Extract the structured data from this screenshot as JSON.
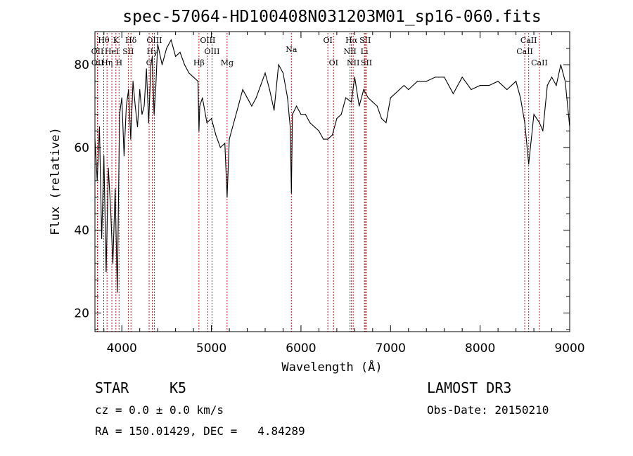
{
  "chart_data": {
    "type": "line",
    "title": "spec-57064-HD100408N031203M01_sp16-060.fits",
    "xlabel": "Wavelength (Å)",
    "ylabel": "Flux (relative)",
    "xlim": [
      3700,
      9000
    ],
    "ylim": [
      15.5,
      88
    ],
    "x_ticks": [
      4000,
      5000,
      6000,
      7000,
      8000,
      9000
    ],
    "y_ticks": [
      20,
      40,
      60,
      80
    ],
    "grid": false,
    "series": [
      {
        "color": "#000000",
        "x": [
          3700,
          3725,
          3750,
          3775,
          3800,
          3825,
          3850,
          3875,
          3900,
          3925,
          3950,
          3975,
          4000,
          4025,
          4050,
          4075,
          4100,
          4125,
          4150,
          4175,
          4200,
          4225,
          4250,
          4275,
          4300,
          4325,
          4340,
          4360,
          4380,
          4400,
          4450,
          4500,
          4550,
          4600,
          4650,
          4700,
          4750,
          4800,
          4850,
          4861,
          4870,
          4900,
          4950,
          5000,
          5050,
          5100,
          5150,
          5175,
          5200,
          5250,
          5300,
          5350,
          5400,
          5450,
          5500,
          5550,
          5600,
          5650,
          5700,
          5750,
          5800,
          5850,
          5880,
          5893,
          5905,
          5950,
          6000,
          6050,
          6100,
          6150,
          6200,
          6250,
          6300,
          6350,
          6400,
          6450,
          6500,
          6563,
          6600,
          6650,
          6700,
          6750,
          6800,
          6850,
          6900,
          6950,
          7000,
          7050,
          7100,
          7150,
          7200,
          7300,
          7400,
          7500,
          7600,
          7700,
          7800,
          7900,
          8000,
          8100,
          8200,
          8300,
          8400,
          8450,
          8498,
          8542,
          8600,
          8662,
          8700,
          8750,
          8800,
          8850,
          8900,
          8950,
          9000
        ],
        "y": [
          62,
          52,
          65,
          38,
          58,
          30,
          55,
          45,
          32,
          50,
          25,
          68,
          72,
          58,
          70,
          74,
          62,
          76,
          70,
          65,
          74,
          68,
          70,
          79,
          66,
          80,
          82,
          68,
          75,
          85,
          80,
          84,
          86,
          82,
          83,
          80,
          78,
          77,
          76,
          64,
          70,
          72,
          66,
          67,
          63,
          60,
          61,
          48,
          62,
          66,
          70,
          74,
          72,
          70,
          72,
          75,
          78,
          74,
          69,
          80,
          78,
          72,
          65,
          49,
          68,
          70,
          68,
          68,
          66,
          65,
          64,
          62,
          62,
          63,
          67,
          68,
          72,
          71,
          77,
          70,
          74,
          72,
          71,
          70,
          67,
          66,
          72,
          73,
          74,
          75,
          74,
          76,
          76,
          77,
          77,
          73,
          77,
          74,
          75,
          75,
          76,
          74,
          76,
          72,
          66,
          56,
          68,
          66,
          64,
          75,
          77,
          75,
          80,
          76,
          65
        ]
      }
    ],
    "line_markers": [
      {
        "label": "Hθ",
        "wavelength": 3798,
        "row": 1
      },
      {
        "label": "K",
        "wavelength": 3934,
        "row": 1
      },
      {
        "label": "Hδ",
        "wavelength": 4102,
        "row": 1
      },
      {
        "label": "OIII",
        "wavelength": 4363,
        "row": 1
      },
      {
        "label": "OIII",
        "wavelength": 4959,
        "row": 1
      },
      {
        "label": "OI",
        "wavelength": 6300,
        "row": 1
      },
      {
        "label": "Hα",
        "wavelength": 6563,
        "row": 1
      },
      {
        "label": "SII",
        "wavelength": 6717,
        "row": 1
      },
      {
        "label": "CaII",
        "wavelength": 8542,
        "row": 1
      },
      {
        "label": "OII",
        "wavelength": 3727,
        "row": 2
      },
      {
        "label": "HeI",
        "wavelength": 3889,
        "row": 2
      },
      {
        "label": "SII",
        "wavelength": 4072,
        "row": 2
      },
      {
        "label": "Hγ",
        "wavelength": 4340,
        "row": 2
      },
      {
        "label": "OIII",
        "wavelength": 5007,
        "row": 2
      },
      {
        "label": "NII",
        "wavelength": 6548,
        "row": 2
      },
      {
        "label": "Li",
        "wavelength": 6708,
        "row": 2
      },
      {
        "label": "CaII",
        "wavelength": 8498,
        "row": 2
      },
      {
        "label": "OII",
        "wavelength": 3729,
        "row": 3
      },
      {
        "label": "Hη",
        "wavelength": 3835,
        "row": 3
      },
      {
        "label": "H",
        "wavelength": 3969,
        "row": 3
      },
      {
        "label": "G",
        "wavelength": 4305,
        "row": 3
      },
      {
        "label": "Hβ",
        "wavelength": 4861,
        "row": 3
      },
      {
        "label": "Mg",
        "wavelength": 5175,
        "row": 3
      },
      {
        "label": "Na",
        "wavelength": 5893,
        "row": 1.8
      },
      {
        "label": "OI",
        "wavelength": 6364,
        "row": 3
      },
      {
        "label": "NII",
        "wavelength": 6583,
        "row": 3
      },
      {
        "label": "SII",
        "wavelength": 6731,
        "row": 3
      },
      {
        "label": "CaII",
        "wavelength": 8662,
        "row": 3
      }
    ]
  },
  "info": {
    "class_label": "STAR",
    "subclass": "K5",
    "cz": "cz = 0.0 ± 0.0 km/s",
    "coords": "RA = 150.01429, DEC =   4.84289",
    "survey": "LAMOST DR3",
    "obs_date": "Obs-Date: 20150210"
  }
}
